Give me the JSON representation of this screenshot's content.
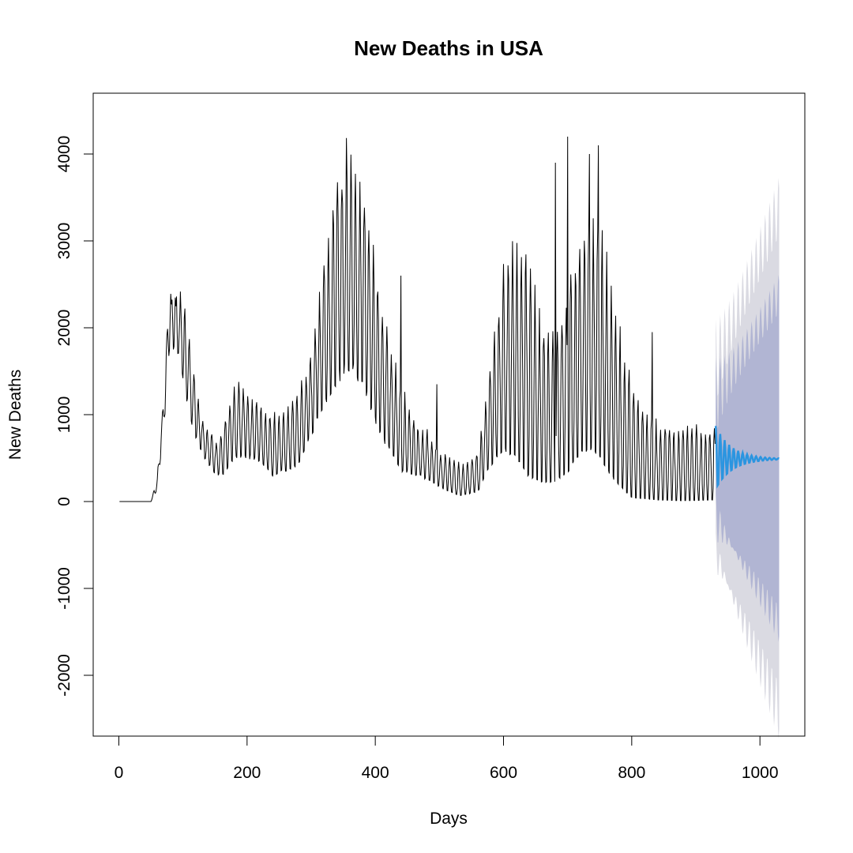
{
  "chart_data": {
    "type": "line",
    "title": "New Deaths in USA",
    "xlabel": "Days",
    "ylabel": "New Deaths",
    "xlim": [
      -40,
      1070
    ],
    "ylim": [
      -2700,
      4700
    ],
    "x_ticks": [
      0,
      200,
      400,
      600,
      800,
      1000
    ],
    "x_tick_labels": [
      "0",
      "200",
      "400",
      "600",
      "800",
      "1000"
    ],
    "y_ticks": [
      -2000,
      -1000,
      0,
      1000,
      2000,
      3000,
      4000
    ],
    "y_tick_labels": [
      "-2000",
      "-1000",
      "0",
      "1000",
      "2000",
      "3000",
      "4000"
    ],
    "grid": false,
    "colors": {
      "observed": "#000000",
      "forecast": "#2b95e0",
      "band80": "#b1b5d3",
      "band95": "#dadae2",
      "frame": "#000000"
    },
    "observed_weekly": {
      "start_day": 1,
      "period": 7,
      "peak_offset": 4,
      "low_points": [
        {
          "day": 1,
          "value": 0
        },
        {
          "day": 50,
          "value": 0
        },
        {
          "day": 60,
          "value": 150
        },
        {
          "day": 70,
          "value": 900
        },
        {
          "day": 80,
          "value": 1900
        },
        {
          "day": 90,
          "value": 1900
        },
        {
          "day": 100,
          "value": 1500
        },
        {
          "day": 110,
          "value": 1100
        },
        {
          "day": 120,
          "value": 800
        },
        {
          "day": 130,
          "value": 600
        },
        {
          "day": 140,
          "value": 450
        },
        {
          "day": 150,
          "value": 350
        },
        {
          "day": 160,
          "value": 320
        },
        {
          "day": 170,
          "value": 400
        },
        {
          "day": 180,
          "value": 520
        },
        {
          "day": 200,
          "value": 550
        },
        {
          "day": 220,
          "value": 500
        },
        {
          "day": 240,
          "value": 320
        },
        {
          "day": 260,
          "value": 380
        },
        {
          "day": 280,
          "value": 450
        },
        {
          "day": 300,
          "value": 800
        },
        {
          "day": 320,
          "value": 1200
        },
        {
          "day": 340,
          "value": 1500
        },
        {
          "day": 360,
          "value": 1650
        },
        {
          "day": 380,
          "value": 1450
        },
        {
          "day": 400,
          "value": 1000
        },
        {
          "day": 420,
          "value": 650
        },
        {
          "day": 440,
          "value": 380
        },
        {
          "day": 470,
          "value": 320
        },
        {
          "day": 500,
          "value": 180
        },
        {
          "day": 530,
          "value": 70
        },
        {
          "day": 560,
          "value": 120
        },
        {
          "day": 580,
          "value": 450
        },
        {
          "day": 600,
          "value": 650
        },
        {
          "day": 620,
          "value": 550
        },
        {
          "day": 640,
          "value": 300
        },
        {
          "day": 660,
          "value": 230
        },
        {
          "day": 680,
          "value": 250
        },
        {
          "day": 700,
          "value": 350
        },
        {
          "day": 720,
          "value": 600
        },
        {
          "day": 740,
          "value": 650
        },
        {
          "day": 760,
          "value": 400
        },
        {
          "day": 780,
          "value": 200
        },
        {
          "day": 800,
          "value": 50
        },
        {
          "day": 840,
          "value": 20
        },
        {
          "day": 880,
          "value": 10
        },
        {
          "day": 930,
          "value": 20
        }
      ],
      "high_points": [
        {
          "day": 1,
          "value": 0
        },
        {
          "day": 50,
          "value": 0
        },
        {
          "day": 60,
          "value": 300
        },
        {
          "day": 70,
          "value": 1300
        },
        {
          "day": 80,
          "value": 2600
        },
        {
          "day": 90,
          "value": 2450
        },
        {
          "day": 100,
          "value": 2400
        },
        {
          "day": 110,
          "value": 1900
        },
        {
          "day": 120,
          "value": 1400
        },
        {
          "day": 130,
          "value": 1050
        },
        {
          "day": 140,
          "value": 850
        },
        {
          "day": 150,
          "value": 750
        },
        {
          "day": 160,
          "value": 800
        },
        {
          "day": 170,
          "value": 1100
        },
        {
          "day": 180,
          "value": 1350
        },
        {
          "day": 190,
          "value": 1450
        },
        {
          "day": 200,
          "value": 1350
        },
        {
          "day": 220,
          "value": 1150
        },
        {
          "day": 240,
          "value": 1050
        },
        {
          "day": 260,
          "value": 1050
        },
        {
          "day": 280,
          "value": 1300
        },
        {
          "day": 300,
          "value": 1800
        },
        {
          "day": 320,
          "value": 3000
        },
        {
          "day": 340,
          "value": 3700
        },
        {
          "day": 355,
          "value": 4350
        },
        {
          "day": 365,
          "value": 4400
        },
        {
          "day": 380,
          "value": 3800
        },
        {
          "day": 400,
          "value": 2900
        },
        {
          "day": 420,
          "value": 2000
        },
        {
          "day": 440,
          "value": 1400
        },
        {
          "day": 460,
          "value": 950
        },
        {
          "day": 480,
          "value": 850
        },
        {
          "day": 500,
          "value": 600
        },
        {
          "day": 520,
          "value": 500
        },
        {
          "day": 540,
          "value": 480
        },
        {
          "day": 560,
          "value": 600
        },
        {
          "day": 580,
          "value": 1600
        },
        {
          "day": 600,
          "value": 2800
        },
        {
          "day": 615,
          "value": 3300
        },
        {
          "day": 640,
          "value": 3100
        },
        {
          "day": 660,
          "value": 2100
        },
        {
          "day": 680,
          "value": 2000
        },
        {
          "day": 700,
          "value": 2500
        },
        {
          "day": 720,
          "value": 3300
        },
        {
          "day": 740,
          "value": 3600
        },
        {
          "day": 760,
          "value": 3100
        },
        {
          "day": 780,
          "value": 2100
        },
        {
          "day": 800,
          "value": 1400
        },
        {
          "day": 820,
          "value": 1050
        },
        {
          "day": 840,
          "value": 950
        },
        {
          "day": 860,
          "value": 900
        },
        {
          "day": 900,
          "value": 900
        },
        {
          "day": 930,
          "value": 850
        }
      ],
      "spikes": [
        {
          "day": 440,
          "value": 2600
        },
        {
          "day": 496,
          "value": 1350
        },
        {
          "day": 681,
          "value": 3900
        },
        {
          "day": 700,
          "value": 4200
        },
        {
          "day": 734,
          "value": 4000
        },
        {
          "day": 748,
          "value": 4100
        },
        {
          "day": 832,
          "value": 1950
        }
      ]
    },
    "forecast": {
      "start_day": 931,
      "end_day": 1030,
      "mean": 490,
      "period": 7,
      "initial_amplitude": 380,
      "decay_per_day": 0.04,
      "band80_start_halfwidth": 700,
      "band80_end_halfwidth": 1900,
      "band95_start_halfwidth": 1100,
      "band95_end_halfwidth": 2900
    }
  }
}
